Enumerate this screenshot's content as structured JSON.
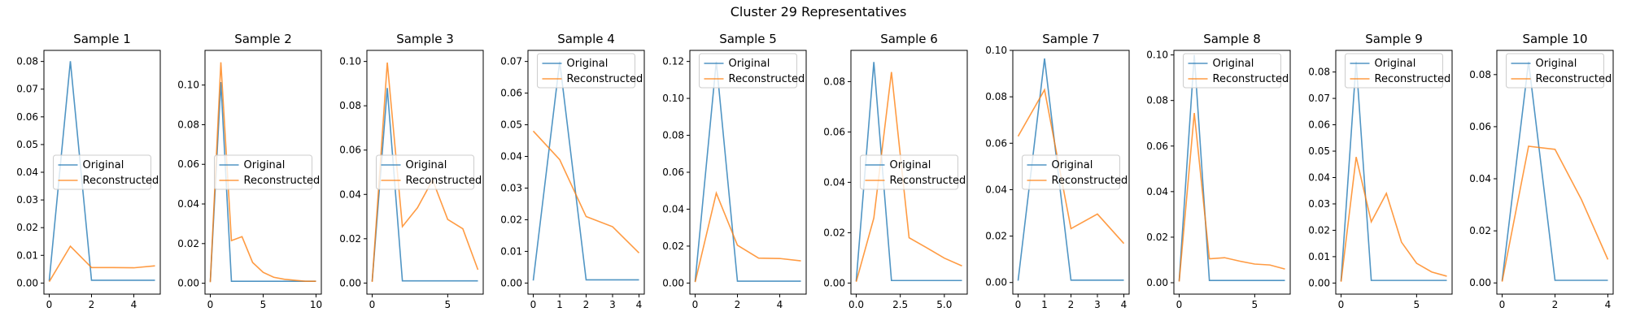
{
  "figure": {
    "title": "Cluster 29 Representatives"
  },
  "colors": {
    "original": "#1f77b4",
    "reconstructed": "#ff7f0e"
  },
  "legend_labels": [
    "Original",
    "Reconstructed"
  ],
  "chart_data": [
    {
      "type": "line",
      "title": "Sample 1",
      "xlim": [
        -0.25,
        5.25
      ],
      "ylim": [
        -0.004,
        0.084
      ],
      "xticks": [
        0,
        2,
        4
      ],
      "yticks": [
        0.0,
        0.01,
        0.02,
        0.03,
        0.04,
        0.05,
        0.06,
        0.07,
        0.08
      ],
      "legend": "center",
      "series": [
        {
          "name": "Original",
          "x": [
            0,
            1,
            2,
            3,
            4,
            5
          ],
          "y": [
            0.0008,
            0.0801,
            0.001,
            0.001,
            0.001,
            0.001
          ]
        },
        {
          "name": "Reconstructed",
          "x": [
            0,
            1,
            2,
            3,
            4,
            5
          ],
          "y": [
            0.0005,
            0.0133,
            0.0056,
            0.0056,
            0.0055,
            0.0062
          ]
        }
      ]
    },
    {
      "type": "line",
      "title": "Sample 2",
      "xlim": [
        -0.5,
        10.5
      ],
      "ylim": [
        -0.0055,
        0.1175
      ],
      "xticks": [
        0,
        5,
        10
      ],
      "yticks": [
        0.0,
        0.02,
        0.04,
        0.06,
        0.08,
        0.1
      ],
      "legend": "center",
      "series": [
        {
          "name": "Original",
          "x": [
            0,
            1,
            2,
            3,
            4,
            5,
            6,
            7,
            8,
            9,
            10
          ],
          "y": [
            0.0008,
            0.1015,
            0.001,
            0.001,
            0.001,
            0.001,
            0.001,
            0.001,
            0.001,
            0.001,
            0.001
          ]
        },
        {
          "name": "Reconstructed",
          "x": [
            0,
            1,
            2,
            3,
            4,
            5,
            6,
            7,
            8,
            9,
            10
          ],
          "y": [
            0.0005,
            0.1115,
            0.0215,
            0.0235,
            0.0105,
            0.0055,
            0.003,
            0.002,
            0.0015,
            0.001,
            0.001
          ]
        }
      ]
    },
    {
      "type": "line",
      "title": "Sample 3",
      "xlim": [
        -0.35,
        7.35
      ],
      "ylim": [
        -0.005,
        0.105
      ],
      "xticks": [
        0,
        5
      ],
      "yticks": [
        0.0,
        0.02,
        0.04,
        0.06,
        0.08,
        0.1
      ],
      "legend": "center",
      "series": [
        {
          "name": "Original",
          "x": [
            0,
            1,
            2,
            3,
            4,
            5,
            6,
            7
          ],
          "y": [
            0.0008,
            0.088,
            0.001,
            0.001,
            0.001,
            0.001,
            0.001,
            0.001
          ]
        },
        {
          "name": "Reconstructed",
          "x": [
            0,
            1,
            2,
            3,
            4,
            5,
            6,
            7
          ],
          "y": [
            0.0005,
            0.0995,
            0.0255,
            0.034,
            0.0465,
            0.0287,
            0.0245,
            0.006
          ]
        }
      ]
    },
    {
      "type": "line",
      "title": "Sample 4",
      "xlim": [
        -0.2,
        4.2
      ],
      "ylim": [
        -0.0035,
        0.0735
      ],
      "xticks": [
        0,
        1,
        2,
        3,
        4
      ],
      "yticks": [
        0.0,
        0.01,
        0.02,
        0.03,
        0.04,
        0.05,
        0.06,
        0.07
      ],
      "legend": "upper center",
      "series": [
        {
          "name": "Original",
          "x": [
            0,
            1,
            2,
            3,
            4
          ],
          "y": [
            0.0008,
            0.07,
            0.001,
            0.001,
            0.001
          ]
        },
        {
          "name": "Reconstructed",
          "x": [
            0,
            1,
            2,
            3,
            4
          ],
          "y": [
            0.048,
            0.039,
            0.021,
            0.0178,
            0.0095
          ]
        }
      ]
    },
    {
      "type": "line",
      "title": "Sample 5",
      "xlim": [
        -0.25,
        5.25
      ],
      "ylim": [
        -0.006,
        0.126
      ],
      "xticks": [
        0,
        2,
        4
      ],
      "yticks": [
        0.0,
        0.02,
        0.04,
        0.06,
        0.08,
        0.1,
        0.12
      ],
      "legend": "upper center",
      "series": [
        {
          "name": "Original",
          "x": [
            0,
            1,
            2,
            3,
            4,
            5
          ],
          "y": [
            0.0008,
            0.12,
            0.001,
            0.001,
            0.001,
            0.001
          ]
        },
        {
          "name": "Reconstructed",
          "x": [
            0,
            1,
            2,
            3,
            4,
            5
          ],
          "y": [
            0.0005,
            0.0487,
            0.0205,
            0.0135,
            0.0133,
            0.012
          ]
        }
      ]
    },
    {
      "type": "line",
      "title": "Sample 6",
      "xlim": [
        -0.3,
        6.3
      ],
      "ylim": [
        -0.0044,
        0.0924
      ],
      "xticks": [
        0,
        2.5,
        5
      ],
      "xticklabels": [
        "0.0",
        "2.5",
        "5.0"
      ],
      "yticks": [
        0.0,
        0.02,
        0.04,
        0.06,
        0.08
      ],
      "legend": "center",
      "series": [
        {
          "name": "Original",
          "x": [
            0,
            1,
            2,
            3,
            4,
            5,
            6
          ],
          "y": [
            0.0008,
            0.0878,
            0.001,
            0.001,
            0.001,
            0.001,
            0.001
          ]
        },
        {
          "name": "Reconstructed",
          "x": [
            0,
            1,
            2,
            3,
            4,
            5,
            6
          ],
          "y": [
            0.0005,
            0.0258,
            0.0838,
            0.018,
            0.014,
            0.0099,
            0.0068
          ]
        }
      ]
    },
    {
      "type": "line",
      "title": "Sample 7",
      "xlim": [
        -0.2,
        4.2
      ],
      "ylim": [
        -0.005,
        0.1
      ],
      "xticks": [
        0,
        1,
        2,
        3,
        4
      ],
      "yticks": [
        0.0,
        0.02,
        0.04,
        0.06,
        0.08,
        0.1
      ],
      "legend": "center",
      "series": [
        {
          "name": "Original",
          "x": [
            0,
            1,
            2,
            3,
            4
          ],
          "y": [
            0.0008,
            0.0965,
            0.001,
            0.001,
            0.001
          ]
        },
        {
          "name": "Reconstructed",
          "x": [
            0,
            1,
            2,
            3,
            4
          ],
          "y": [
            0.063,
            0.083,
            0.0232,
            0.0295,
            0.0168
          ]
        }
      ]
    },
    {
      "type": "line",
      "title": "Sample 8",
      "xlim": [
        -0.35,
        7.35
      ],
      "ylim": [
        -0.005,
        0.102
      ],
      "xticks": [
        0,
        5
      ],
      "yticks": [
        0.0,
        0.02,
        0.04,
        0.06,
        0.08,
        0.1
      ],
      "legend": "upper center",
      "series": [
        {
          "name": "Original",
          "x": [
            0,
            1,
            2,
            3,
            4,
            5,
            6,
            7
          ],
          "y": [
            0.0008,
            0.1,
            0.001,
            0.001,
            0.001,
            0.001,
            0.001,
            0.001
          ]
        },
        {
          "name": "Reconstructed",
          "x": [
            0,
            1,
            2,
            3,
            4,
            5,
            6,
            7
          ],
          "y": [
            0.0005,
            0.0745,
            0.0105,
            0.011,
            0.0095,
            0.0082,
            0.0078,
            0.006
          ]
        }
      ]
    },
    {
      "type": "line",
      "title": "Sample 9",
      "xlim": [
        -0.35,
        7.35
      ],
      "ylim": [
        -0.0042,
        0.0882
      ],
      "xticks": [
        0,
        5
      ],
      "yticks": [
        0.0,
        0.01,
        0.02,
        0.03,
        0.04,
        0.05,
        0.06,
        0.07,
        0.08
      ],
      "legend": "upper center",
      "series": [
        {
          "name": "Original",
          "x": [
            0,
            1,
            2,
            3,
            4,
            5,
            6,
            7
          ],
          "y": [
            0.0008,
            0.084,
            0.001,
            0.001,
            0.001,
            0.001,
            0.001,
            0.001
          ]
        },
        {
          "name": "Reconstructed",
          "x": [
            0,
            1,
            2,
            3,
            4,
            5,
            6,
            7
          ],
          "y": [
            0.0005,
            0.0478,
            0.0232,
            0.034,
            0.0155,
            0.0075,
            0.0042,
            0.0026
          ]
        }
      ]
    },
    {
      "type": "line",
      "title": "Sample 10",
      "xlim": [
        -0.2,
        4.2
      ],
      "ylim": [
        -0.0043,
        0.0893
      ],
      "xticks": [
        0,
        2,
        4
      ],
      "yticks": [
        0.0,
        0.02,
        0.04,
        0.06,
        0.08
      ],
      "legend": "upper center",
      "series": [
        {
          "name": "Original",
          "x": [
            0,
            1,
            2,
            3,
            4
          ],
          "y": [
            0.0008,
            0.085,
            0.001,
            0.001,
            0.001
          ]
        },
        {
          "name": "Reconstructed",
          "x": [
            0,
            1,
            2,
            3,
            4
          ],
          "y": [
            0.0005,
            0.0525,
            0.0513,
            0.032,
            0.009
          ]
        }
      ]
    }
  ]
}
